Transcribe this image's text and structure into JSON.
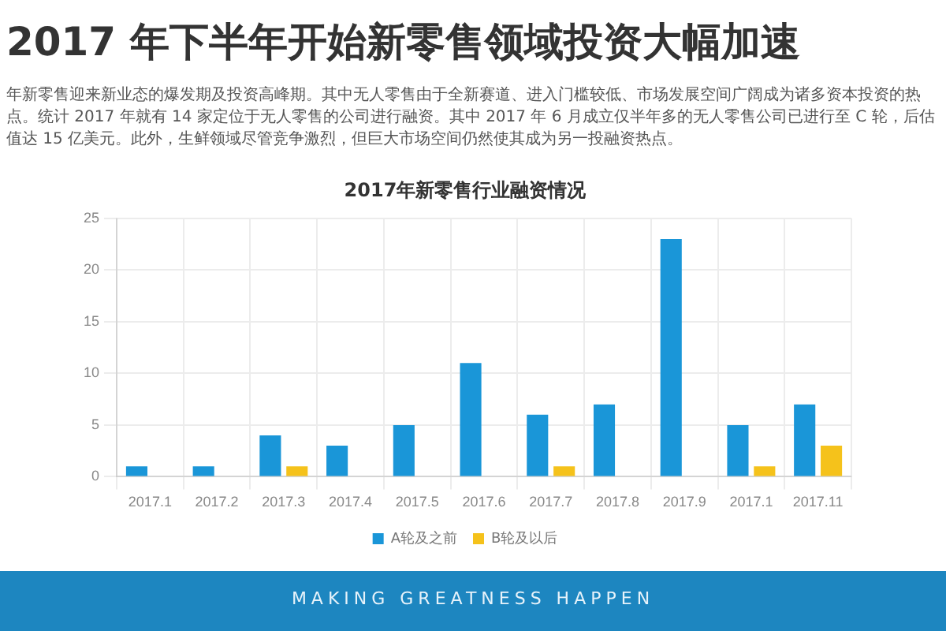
{
  "chart_data": {
    "type": "bar",
    "title": "2017 年下半年开始新零售领域投资大幅加速",
    "subtitle": "2017年新零售行业融资情况",
    "annotations": [
      "年新零售迎来新业态的爆发期及投资高峰期。其中无人零售由于全新赛道、进入门槛较低、市场发展空间广阔成为诸多资本投资的热点。统计 2017 年就有 14 家定位于无人零售的公司进行融资。其中 2017 年 6 月成立仅半年多的无人零售公司已进行至 C 轮，后估值达 15 亿美元。此外，生鲜领域尽管竞争激烈，但巨大市场空间仍然使其成为另一投融资热点。",
      "MAKING GREATNESS HAPPEN"
    ],
    "categories": [
      "2017.1",
      "2017.2",
      "2017.3",
      "2017.4",
      "2017.5",
      "2017.6",
      "2017.7",
      "2017.8",
      "2017.9",
      "2017.1",
      "2017.11"
    ],
    "series": [
      {
        "name": "A轮及之前",
        "color": "#1a96d8",
        "values": [
          1,
          1,
          4,
          3,
          5,
          11,
          6,
          7,
          23,
          5,
          7
        ]
      },
      {
        "name": "B轮及以后",
        "color": "#f5c21b",
        "values": [
          null,
          null,
          1,
          null,
          null,
          null,
          1,
          null,
          null,
          1,
          3
        ]
      }
    ],
    "ylim": [
      0,
      25
    ],
    "yticks": [
      0,
      5,
      10,
      15,
      20,
      25
    ],
    "grid": true,
    "legend": "bottom"
  }
}
